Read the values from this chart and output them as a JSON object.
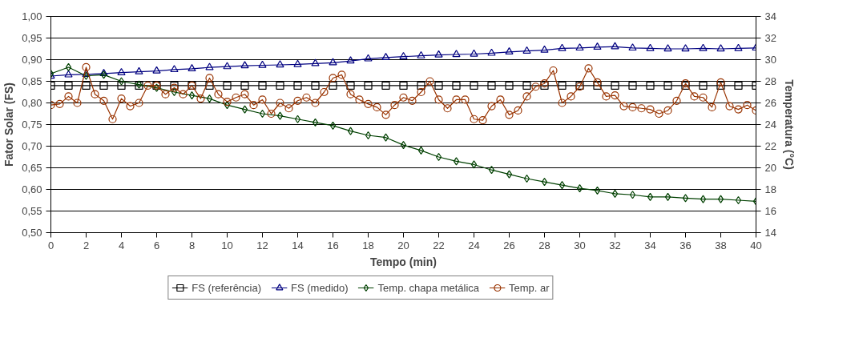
{
  "chart_data": {
    "type": "line",
    "xlabel": "Tempo (min)",
    "ylabel": "Fator Solar (FS)",
    "y2label": "Temperatura (°C)",
    "xlim": [
      0,
      40
    ],
    "xticks": [
      0,
      2,
      4,
      6,
      8,
      10,
      12,
      14,
      16,
      18,
      20,
      22,
      24,
      26,
      28,
      30,
      32,
      34,
      36,
      38,
      40
    ],
    "ylim": [
      0.5,
      1.0
    ],
    "yticks": [
      {
        "value": 0.5,
        "label": "0,50"
      },
      {
        "value": 0.55,
        "label": "0,55"
      },
      {
        "value": 0.6,
        "label": "0,60"
      },
      {
        "value": 0.65,
        "label": "0,65"
      },
      {
        "value": 0.7,
        "label": "0,70"
      },
      {
        "value": 0.75,
        "label": "0,75"
      },
      {
        "value": 0.8,
        "label": "0,80"
      },
      {
        "value": 0.85,
        "label": "0,85"
      },
      {
        "value": 0.9,
        "label": "0,90"
      },
      {
        "value": 0.95,
        "label": "0,95"
      },
      {
        "value": 1.0,
        "label": "1,00"
      }
    ],
    "y2lim": [
      14,
      34
    ],
    "y2ticks": [
      14,
      16,
      18,
      20,
      22,
      24,
      26,
      28,
      30,
      32,
      34
    ],
    "grid": "y",
    "legend": "bottom",
    "line_style": "solid",
    "series": [
      {
        "name": "FS (referência)",
        "color": "#000000",
        "marker": "square",
        "x": [
          0,
          1,
          2,
          3,
          4,
          5,
          6,
          7,
          8,
          9,
          10,
          11,
          12,
          13,
          14,
          15,
          16,
          17,
          18,
          19,
          20,
          21,
          22,
          23,
          24,
          25,
          26,
          27,
          28,
          29,
          30,
          31,
          32,
          33,
          34,
          35,
          36,
          37,
          38,
          39,
          40
        ],
        "values": [
          0.84,
          0.84,
          0.84,
          0.84,
          0.84,
          0.84,
          0.84,
          0.84,
          0.84,
          0.84,
          0.84,
          0.84,
          0.84,
          0.84,
          0.84,
          0.84,
          0.84,
          0.84,
          0.84,
          0.84,
          0.84,
          0.84,
          0.84,
          0.84,
          0.84,
          0.84,
          0.84,
          0.84,
          0.84,
          0.84,
          0.84,
          0.84,
          0.84,
          0.84,
          0.84,
          0.84,
          0.84,
          0.84,
          0.84,
          0.84,
          0.84
        ]
      },
      {
        "name": "FS (medido)",
        "color": "#000080",
        "marker": "triangle",
        "x": [
          0,
          1,
          2,
          3,
          4,
          5,
          6,
          7,
          8,
          9,
          10,
          11,
          12,
          13,
          14,
          15,
          16,
          17,
          18,
          19,
          20,
          21,
          22,
          23,
          24,
          25,
          26,
          27,
          28,
          29,
          30,
          31,
          32,
          33,
          34,
          35,
          36,
          37,
          38,
          39,
          40
        ],
        "values": [
          0.862,
          0.865,
          0.866,
          0.868,
          0.87,
          0.872,
          0.874,
          0.877,
          0.879,
          0.882,
          0.884,
          0.886,
          0.887,
          0.888,
          0.889,
          0.891,
          0.893,
          0.897,
          0.902,
          0.905,
          0.907,
          0.909,
          0.911,
          0.912,
          0.913,
          0.915,
          0.918,
          0.92,
          0.922,
          0.926,
          0.927,
          0.929,
          0.93,
          0.927,
          0.926,
          0.925,
          0.925,
          0.926,
          0.925,
          0.926,
          0.927
        ]
      },
      {
        "name": "Temp. chapa metálica",
        "color": "#004000",
        "marker": "diamond",
        "axis": "y2",
        "x": [
          0,
          1,
          2,
          3,
          4,
          5,
          6,
          7,
          8,
          9,
          10,
          11,
          12,
          13,
          14,
          15,
          16,
          17,
          18,
          19,
          20,
          21,
          22,
          23,
          24,
          25,
          26,
          27,
          28,
          29,
          30,
          31,
          32,
          33,
          34,
          35,
          36,
          37,
          38,
          39,
          40
        ],
        "values": [
          28.7,
          29.3,
          28.5,
          28.6,
          28.0,
          27.7,
          27.4,
          27.0,
          26.7,
          26.4,
          25.8,
          25.4,
          25.0,
          24.8,
          24.5,
          24.2,
          23.9,
          23.4,
          23.0,
          22.8,
          22.1,
          21.6,
          21.0,
          20.6,
          20.3,
          19.8,
          19.4,
          19.0,
          18.7,
          18.4,
          18.1,
          17.9,
          17.6,
          17.5,
          17.3,
          17.3,
          17.2,
          17.1,
          17.1,
          17.0,
          16.9
        ]
      },
      {
        "name": "Temp. ar",
        "color": "#993300",
        "marker": "circle",
        "axis": "y2",
        "x": [
          0,
          0.5,
          1,
          1.5,
          2,
          2.5,
          3,
          3.5,
          4,
          4.5,
          5,
          5.5,
          6,
          6.5,
          7,
          7.5,
          8,
          8.5,
          9,
          9.5,
          10,
          10.5,
          11,
          11.5,
          12,
          12.5,
          13,
          13.5,
          14,
          14.5,
          15,
          15.5,
          16,
          16.5,
          17,
          17.5,
          18,
          18.5,
          19,
          19.5,
          20,
          20.5,
          21,
          21.5,
          22,
          22.5,
          23,
          23.5,
          24,
          24.5,
          25,
          25.5,
          26,
          26.5,
          27,
          27.5,
          28,
          28.5,
          29,
          29.5,
          30,
          30.5,
          31,
          31.5,
          32,
          32.5,
          33,
          33.5,
          34,
          34.5,
          35,
          35.5,
          36,
          36.5,
          37,
          37.5,
          38,
          38.5,
          39,
          39.5,
          40
        ],
        "values": [
          25.8,
          25.9,
          26.6,
          26.0,
          29.3,
          26.8,
          26.2,
          24.5,
          26.4,
          25.7,
          26.0,
          27.6,
          27.6,
          26.8,
          27.4,
          26.8,
          27.6,
          26.4,
          28.3,
          26.8,
          26.1,
          26.5,
          26.8,
          25.8,
          26.3,
          25.0,
          26.0,
          25.5,
          26.2,
          26.5,
          26.0,
          27.0,
          28.3,
          28.6,
          26.8,
          26.3,
          25.9,
          25.6,
          24.9,
          25.8,
          26.5,
          26.2,
          27.0,
          28.0,
          26.3,
          25.5,
          26.3,
          26.3,
          24.5,
          24.4,
          25.7,
          26.3,
          24.9,
          25.3,
          26.6,
          27.5,
          27.8,
          29.0,
          26.0,
          26.6,
          27.5,
          29.2,
          27.9,
          26.6,
          26.7,
          25.7,
          25.6,
          25.5,
          25.4,
          25.0,
          25.3,
          26.2,
          27.8,
          26.6,
          26.5,
          25.6,
          27.9,
          25.7,
          25.4,
          25.8,
          25.3
        ]
      }
    ]
  }
}
